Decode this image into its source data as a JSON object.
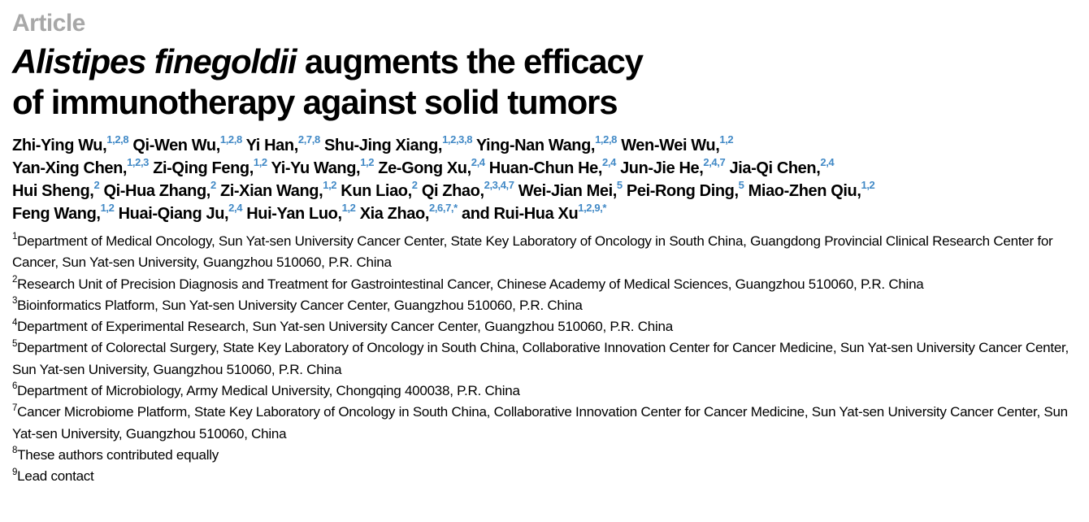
{
  "page": {
    "kicker": "Article",
    "title": {
      "line1_italic": "Alistipes finegoldii",
      "line1_rest": " augments the efficacy",
      "line2": "of immunotherapy against solid tumors"
    }
  },
  "colors": {
    "superscript_blue": "#4189c6",
    "kicker_gray": "#a8a8a8",
    "text_black": "#000000"
  },
  "authors": [
    {
      "name": "Zhi-Ying Wu",
      "comma": true,
      "sup": "1,2,8",
      "break_after": false
    },
    {
      "name": "Qi-Wen Wu",
      "comma": true,
      "sup": "1,2,8",
      "break_after": false
    },
    {
      "name": "Yi Han",
      "comma": true,
      "sup": "2,7,8",
      "break_after": false
    },
    {
      "name": "Shu-Jing Xiang",
      "comma": true,
      "sup": "1,2,3,8",
      "break_after": false
    },
    {
      "name": "Ying-Nan Wang",
      "comma": true,
      "sup": "1,2,8",
      "break_after": false
    },
    {
      "name": "Wen-Wei Wu",
      "comma": true,
      "sup": "1,2",
      "break_after": true
    },
    {
      "name": "Yan-Xing Chen",
      "comma": true,
      "sup": "1,2,3",
      "break_after": false
    },
    {
      "name": "Zi-Qing Feng",
      "comma": true,
      "sup": "1,2",
      "break_after": false
    },
    {
      "name": "Yi-Yu Wang",
      "comma": true,
      "sup": "1,2",
      "break_after": false
    },
    {
      "name": "Ze-Gong Xu",
      "comma": true,
      "sup": "2,4",
      "break_after": false
    },
    {
      "name": "Huan-Chun He",
      "comma": true,
      "sup": "2,4",
      "break_after": false
    },
    {
      "name": "Jun-Jie He",
      "comma": true,
      "sup": "2,4,7",
      "break_after": false
    },
    {
      "name": "Jia-Qi Chen",
      "comma": true,
      "sup": "2,4",
      "break_after": true
    },
    {
      "name": "Hui Sheng",
      "comma": true,
      "sup": "2",
      "break_after": false
    },
    {
      "name": "Qi-Hua Zhang",
      "comma": true,
      "sup": "2",
      "break_after": false
    },
    {
      "name": "Zi-Xian Wang",
      "comma": true,
      "sup": "1,2",
      "break_after": false
    },
    {
      "name": "Kun Liao",
      "comma": true,
      "sup": "2",
      "break_after": false
    },
    {
      "name": "Qi Zhao",
      "comma": true,
      "sup": "2,3,4,7",
      "break_after": false
    },
    {
      "name": "Wei-Jian Mei",
      "comma": true,
      "sup": "5",
      "break_after": false
    },
    {
      "name": "Pei-Rong Ding",
      "comma": true,
      "sup": "5",
      "break_after": false
    },
    {
      "name": "Miao-Zhen Qiu",
      "comma": true,
      "sup": "1,2",
      "break_after": true
    },
    {
      "name": "Feng Wang",
      "comma": true,
      "sup": "1,2",
      "break_after": false
    },
    {
      "name": "Huai-Qiang Ju",
      "comma": true,
      "sup": "2,4",
      "break_after": false
    },
    {
      "name": "Hui-Yan Luo",
      "comma": true,
      "sup": "1,2",
      "break_after": false
    },
    {
      "name": "Xia Zhao",
      "comma": true,
      "sup": "2,6,7,*",
      "break_after": false,
      "lead": ""
    },
    {
      "name": "Rui-Hua Xu",
      "comma": false,
      "sup": "1,2,9,*",
      "break_after": false,
      "lead": "and "
    }
  ],
  "affiliations": [
    {
      "sup": "1",
      "text": "Department of Medical Oncology, Sun Yat-sen University Cancer Center, State Key Laboratory of Oncology in South China, Guangdong Provincial Clinical Research Center for Cancer, Sun Yat-sen University, Guangzhou 510060, P.R. China"
    },
    {
      "sup": "2",
      "text": "Research Unit of Precision Diagnosis and Treatment for Gastrointestinal Cancer, Chinese Academy of Medical Sciences, Guangzhou 510060, P.R. China"
    },
    {
      "sup": "3",
      "text": "Bioinformatics Platform, Sun Yat-sen University Cancer Center, Guangzhou 510060, P.R. China"
    },
    {
      "sup": "4",
      "text": "Department of Experimental Research, Sun Yat-sen University Cancer Center, Guangzhou 510060, P.R. China"
    },
    {
      "sup": "5",
      "text": "Department of Colorectal Surgery, State Key Laboratory of Oncology in South China, Collaborative Innovation Center for Cancer Medicine, Sun Yat-sen University Cancer Center, Sun Yat-sen University, Guangzhou 510060, P.R. China"
    },
    {
      "sup": "6",
      "text": "Department of Microbiology, Army Medical University, Chongqing 400038, P.R. China"
    },
    {
      "sup": "7",
      "text": "Cancer Microbiome Platform, State Key Laboratory of Oncology in South China, Collaborative Innovation Center for Cancer Medicine, Sun Yat-sen University Cancer Center, Sun Yat-sen University, Guangzhou 510060, China"
    },
    {
      "sup": "8",
      "text": "These authors contributed equally"
    },
    {
      "sup": "9",
      "text": "Lead contact"
    }
  ]
}
